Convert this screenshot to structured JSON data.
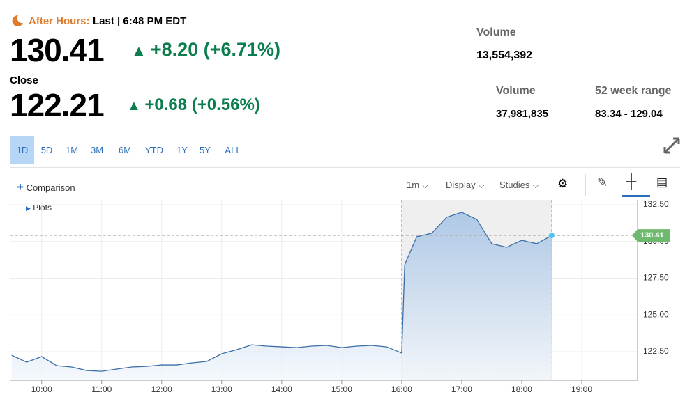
{
  "header": {
    "after_hours_label": "After Hours:",
    "last_label": "Last | 6:48 PM EDT",
    "price": "130.41",
    "change": "+8.20 (+6.71%)",
    "volume_label": "Volume",
    "volume": "13,554,392"
  },
  "close": {
    "label": "Close",
    "price": "122.21",
    "change": "+0.68 (+0.56%)",
    "volume_label": "Volume",
    "volume": "37,981,835",
    "range_label": "52 week range",
    "range": "83.34 - 129.04"
  },
  "ranges": [
    "1D",
    "5D",
    "1M",
    "3M",
    "6M",
    "YTD",
    "1Y",
    "5Y",
    "ALL"
  ],
  "toolbar": {
    "comparison": "Comparison",
    "interval": "1m",
    "display": "Display",
    "studies": "Studies",
    "plots": "Plots"
  },
  "chart_data": {
    "type": "line",
    "x": [
      9.5,
      9.75,
      10,
      10.25,
      10.5,
      10.75,
      11,
      11.25,
      11.5,
      11.75,
      12,
      12.25,
      12.5,
      12.75,
      13,
      13.25,
      13.5,
      13.75,
      14,
      14.25,
      14.5,
      14.75,
      15,
      15.25,
      15.5,
      15.75,
      16,
      16.05,
      16.25,
      16.5,
      16.75,
      17,
      17.25,
      17.5,
      17.75,
      18,
      18.25,
      18.5
    ],
    "series": [
      {
        "color": "#3b6fa8",
        "values": [
          122.26,
          121.79,
          122.17,
          121.55,
          121.46,
          121.22,
          121.17,
          121.32,
          121.46,
          121.5,
          121.6,
          121.6,
          121.74,
          121.84,
          122.36,
          122.64,
          122.97,
          122.88,
          122.83,
          122.78,
          122.88,
          122.93,
          122.78,
          122.88,
          122.93,
          122.83,
          122.41,
          128.42,
          130.32,
          130.56,
          131.65,
          131.98,
          131.5,
          129.85,
          129.61,
          130.08,
          129.85,
          130.41
        ]
      }
    ],
    "xlim": [
      9.48,
      19.93
    ],
    "ylim": [
      120.56,
      132.83
    ],
    "xticks": [
      {
        "value": 10,
        "label": "10:00"
      },
      {
        "value": 11,
        "label": "11:00"
      },
      {
        "value": 12,
        "label": "12:00"
      },
      {
        "value": 13,
        "label": "13:00"
      },
      {
        "value": 14,
        "label": "14:00"
      },
      {
        "value": 15,
        "label": "15:00"
      },
      {
        "value": 16,
        "label": "16:00"
      },
      {
        "value": 17,
        "label": "17:00"
      },
      {
        "value": 18,
        "label": "18:00"
      },
      {
        "value": 19,
        "label": "19:00"
      }
    ],
    "yticks": [
      {
        "value": 122.5,
        "label": "122.50"
      },
      {
        "value": 125,
        "label": "125.00"
      },
      {
        "value": 127.5,
        "label": "127.50"
      },
      {
        "value": 130,
        "label": "130.00"
      },
      {
        "value": 132.5,
        "label": "132.50"
      }
    ],
    "after_hours_range": [
      16,
      18.5
    ],
    "grid": true
  }
}
